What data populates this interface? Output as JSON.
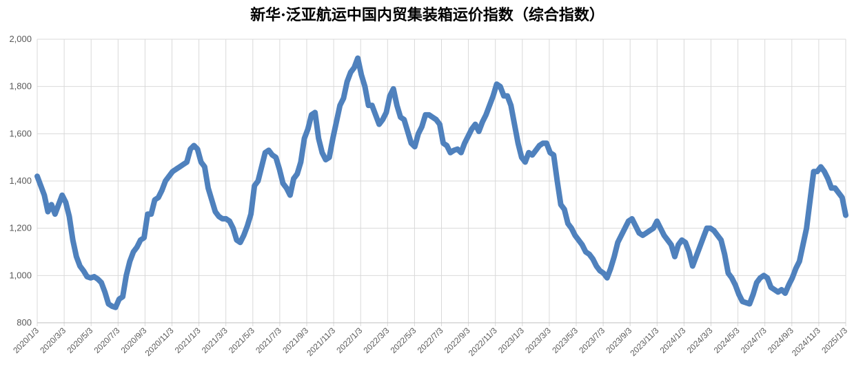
{
  "chart_data": {
    "type": "line",
    "title": "新华·泛亚航运中国内贸集装箱运价指数（综合指数）",
    "xlabel": "",
    "ylabel": "",
    "ylim": [
      800,
      2000
    ],
    "y_ticks": [
      "800",
      "1,000",
      "1,200",
      "1,400",
      "1,600",
      "1,800",
      "2,000"
    ],
    "x_ticks": [
      "2020/1/3",
      "2020/3/3",
      "2020/5/3",
      "2020/7/3",
      "2020/9/3",
      "2020/11/3",
      "2021/1/3",
      "2021/3/3",
      "2021/5/3",
      "2021/7/3",
      "2021/9/3",
      "2021/11/3",
      "2022/1/3",
      "2022/3/3",
      "2022/5/3",
      "2022/7/3",
      "2022/9/3",
      "2022/11/3",
      "2023/1/3",
      "2023/3/3",
      "2023/5/3",
      "2023/7/3",
      "2023/9/3",
      "2023/11/3",
      "2024/1/3",
      "2024/3/3",
      "2024/5/3",
      "2024/7/3",
      "2024/9/3",
      "2024/11/3",
      "2025/1/3"
    ],
    "grid": true,
    "legend": "none",
    "line_color": "#4F81BD",
    "series": [
      {
        "values": [
          1420,
          1380,
          1340,
          1270,
          1300,
          1260,
          1300,
          1340,
          1310,
          1250,
          1150,
          1080,
          1040,
          1020,
          995,
          990,
          995,
          985,
          970,
          930,
          880,
          870,
          865,
          900,
          910,
          1000,
          1060,
          1100,
          1120,
          1150,
          1160,
          1260,
          1260,
          1320,
          1330,
          1360,
          1400,
          1420,
          1440,
          1450,
          1460,
          1470,
          1480,
          1535,
          1550,
          1535,
          1480,
          1460,
          1370,
          1320,
          1270,
          1250,
          1240,
          1240,
          1230,
          1200,
          1150,
          1140,
          1170,
          1210,
          1260,
          1380,
          1400,
          1460,
          1520,
          1530,
          1510,
          1500,
          1450,
          1390,
          1370,
          1340,
          1410,
          1430,
          1480,
          1580,
          1620,
          1680,
          1690,
          1580,
          1520,
          1490,
          1500,
          1580,
          1650,
          1720,
          1750,
          1820,
          1860,
          1880,
          1920,
          1850,
          1800,
          1720,
          1720,
          1680,
          1640,
          1660,
          1690,
          1760,
          1790,
          1720,
          1670,
          1660,
          1610,
          1560,
          1545,
          1600,
          1630,
          1680,
          1680,
          1670,
          1660,
          1640,
          1560,
          1550,
          1520,
          1530,
          1535,
          1520,
          1560,
          1590,
          1620,
          1640,
          1610,
          1650,
          1680,
          1720,
          1760,
          1810,
          1800,
          1760,
          1760,
          1720,
          1640,
          1560,
          1500,
          1480,
          1520,
          1510,
          1530,
          1550,
          1560,
          1560,
          1520,
          1510,
          1400,
          1300,
          1280,
          1220,
          1200,
          1170,
          1150,
          1130,
          1100,
          1090,
          1070,
          1040,
          1020,
          1010,
          990,
          1030,
          1080,
          1140,
          1170,
          1200,
          1230,
          1240,
          1210,
          1180,
          1170,
          1180,
          1190,
          1200,
          1230,
          1200,
          1170,
          1150,
          1130,
          1080,
          1130,
          1150,
          1140,
          1100,
          1040,
          1080,
          1120,
          1160,
          1200,
          1200,
          1190,
          1170,
          1150,
          1090,
          1010,
          990,
          960,
          920,
          890,
          885,
          880,
          920,
          970,
          990,
          1000,
          990,
          950,
          940,
          930,
          940,
          925,
          960,
          990,
          1030,
          1060,
          1130,
          1200,
          1320,
          1440,
          1440,
          1460,
          1440,
          1410,
          1370,
          1370,
          1350,
          1330,
          1255
        ]
      }
    ]
  }
}
